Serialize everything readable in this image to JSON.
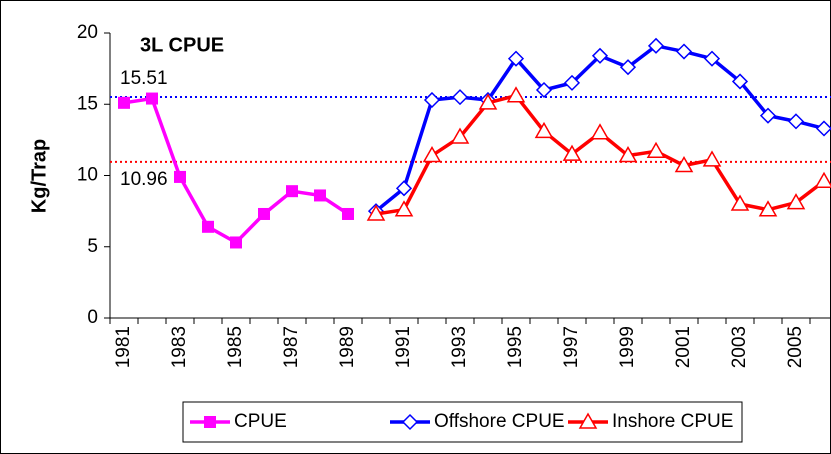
{
  "chart_data": {
    "type": "line",
    "title": "3L CPUE",
    "y_label": "Kg/Trap",
    "x": [
      1981,
      1982,
      1983,
      1984,
      1985,
      1986,
      1987,
      1988,
      1989,
      1990,
      1991,
      1992,
      1993,
      1994,
      1995,
      1996,
      1997,
      1998,
      1999,
      2000,
      2001,
      2002,
      2003,
      2004,
      2005,
      2006
    ],
    "xlim": [
      1980.5,
      2006.25
    ],
    "xticks": [
      1981,
      1983,
      1985,
      1987,
      1989,
      1991,
      1993,
      1995,
      1997,
      1999,
      2001,
      2003,
      2005
    ],
    "ylim": [
      0,
      20
    ],
    "yticks": [
      0,
      5,
      10,
      15,
      20
    ],
    "series": [
      {
        "name": "CPUE",
        "color": "#ff00ff",
        "marker": "square",
        "values": [
          15.1,
          15.4,
          9.9,
          6.4,
          5.3,
          7.3,
          8.9,
          8.6,
          7.3,
          null,
          null,
          null,
          null,
          null,
          null,
          null,
          null,
          null,
          null,
          null,
          null,
          null,
          null,
          null,
          null,
          null
        ]
      },
      {
        "name": "Offshore CPUE",
        "color": "#0000ff",
        "marker": "diamond",
        "values": [
          null,
          null,
          null,
          null,
          null,
          null,
          null,
          null,
          null,
          7.5,
          9.1,
          15.3,
          15.5,
          15.3,
          18.2,
          16.0,
          16.5,
          18.4,
          17.6,
          19.1,
          18.7,
          18.2,
          16.6,
          14.2,
          13.8,
          13.3
        ]
      },
      {
        "name": "Inshore CPUE",
        "color": "#ff0000",
        "marker": "triangle",
        "values": [
          null,
          null,
          null,
          null,
          null,
          null,
          null,
          null,
          null,
          7.3,
          7.6,
          11.4,
          12.7,
          15.1,
          15.6,
          13.1,
          11.5,
          13.0,
          11.4,
          11.7,
          10.7,
          11.1,
          8.0,
          7.6,
          8.1,
          9.6
        ]
      }
    ],
    "reference_lines": [
      {
        "value": 15.51,
        "color": "#0000ff"
      },
      {
        "value": 10.96,
        "color": "#ff0000"
      }
    ],
    "legend": "bottom"
  }
}
